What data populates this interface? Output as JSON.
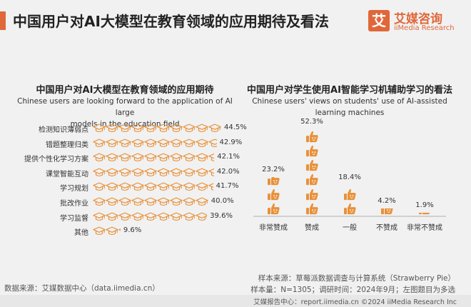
{
  "header": {
    "title": "中国用户对AI大模型在教育领域的应用期待及看法",
    "logo_mark": "艾",
    "logo_name": "艾媒咨询",
    "logo_en": "iiMedia Research"
  },
  "left_panel": {
    "title": "中国用户对AI大模型在教育领域的应用期待",
    "subtitle_line1": "Chinese users are looking forward to the application of AI large",
    "subtitle_line2": "models in the education field"
  },
  "right_panel": {
    "title": "中国用户对学生使用AI智能学习机辅助学习的看法",
    "subtitle_line1": "Chinese users' views on students' use of AI-assisted",
    "subtitle_line2": "learning machines"
  },
  "chart_data": [
    {
      "type": "bar",
      "orientation": "horizontal",
      "mark": "graduation-cap-icon",
      "categories": [
        "检测知识薄弱点",
        "错题整理归类",
        "提供个性化学习方案",
        "课堂智能互动",
        "学习规划",
        "批改作业",
        "学习监督",
        "其他"
      ],
      "values": [
        44.5,
        42.9,
        42.1,
        42.0,
        41.7,
        40.0,
        39.6,
        9.6
      ],
      "value_labels": [
        "44.5%",
        "42.9%",
        "42.1%",
        "42.0%",
        "41.7%",
        "40.0%",
        "39.6%",
        "9.6%"
      ],
      "xlim": [
        0,
        44.5
      ]
    },
    {
      "type": "bar",
      "orientation": "vertical",
      "mark": "thumbs-up-icon",
      "categories": [
        "非常赞成",
        "赞成",
        "一般",
        "不赞成",
        "非常不赞成"
      ],
      "values": [
        23.2,
        52.3,
        18.4,
        4.2,
        1.9
      ],
      "value_labels": [
        "23.2%",
        "52.3%",
        "18.4%",
        "4.2%",
        "1.9%"
      ],
      "ylim": [
        0,
        52.3
      ]
    }
  ],
  "footer": {
    "source": "数据来源：艾媒数据中心（data.iimedia.cn）",
    "sample_source": "样本来源：草莓派数据调查与计算系统（Strawberry Pie）",
    "sample_size": "样本量：N=1305；调研时间：2024年9月；左图题目为多选",
    "band": "艾媒报告中心：report.iimedia.cn  ©2024  iiMedia Research  Inc"
  },
  "colors": {
    "accent": "#e0673a",
    "icon": "#e8913a"
  }
}
